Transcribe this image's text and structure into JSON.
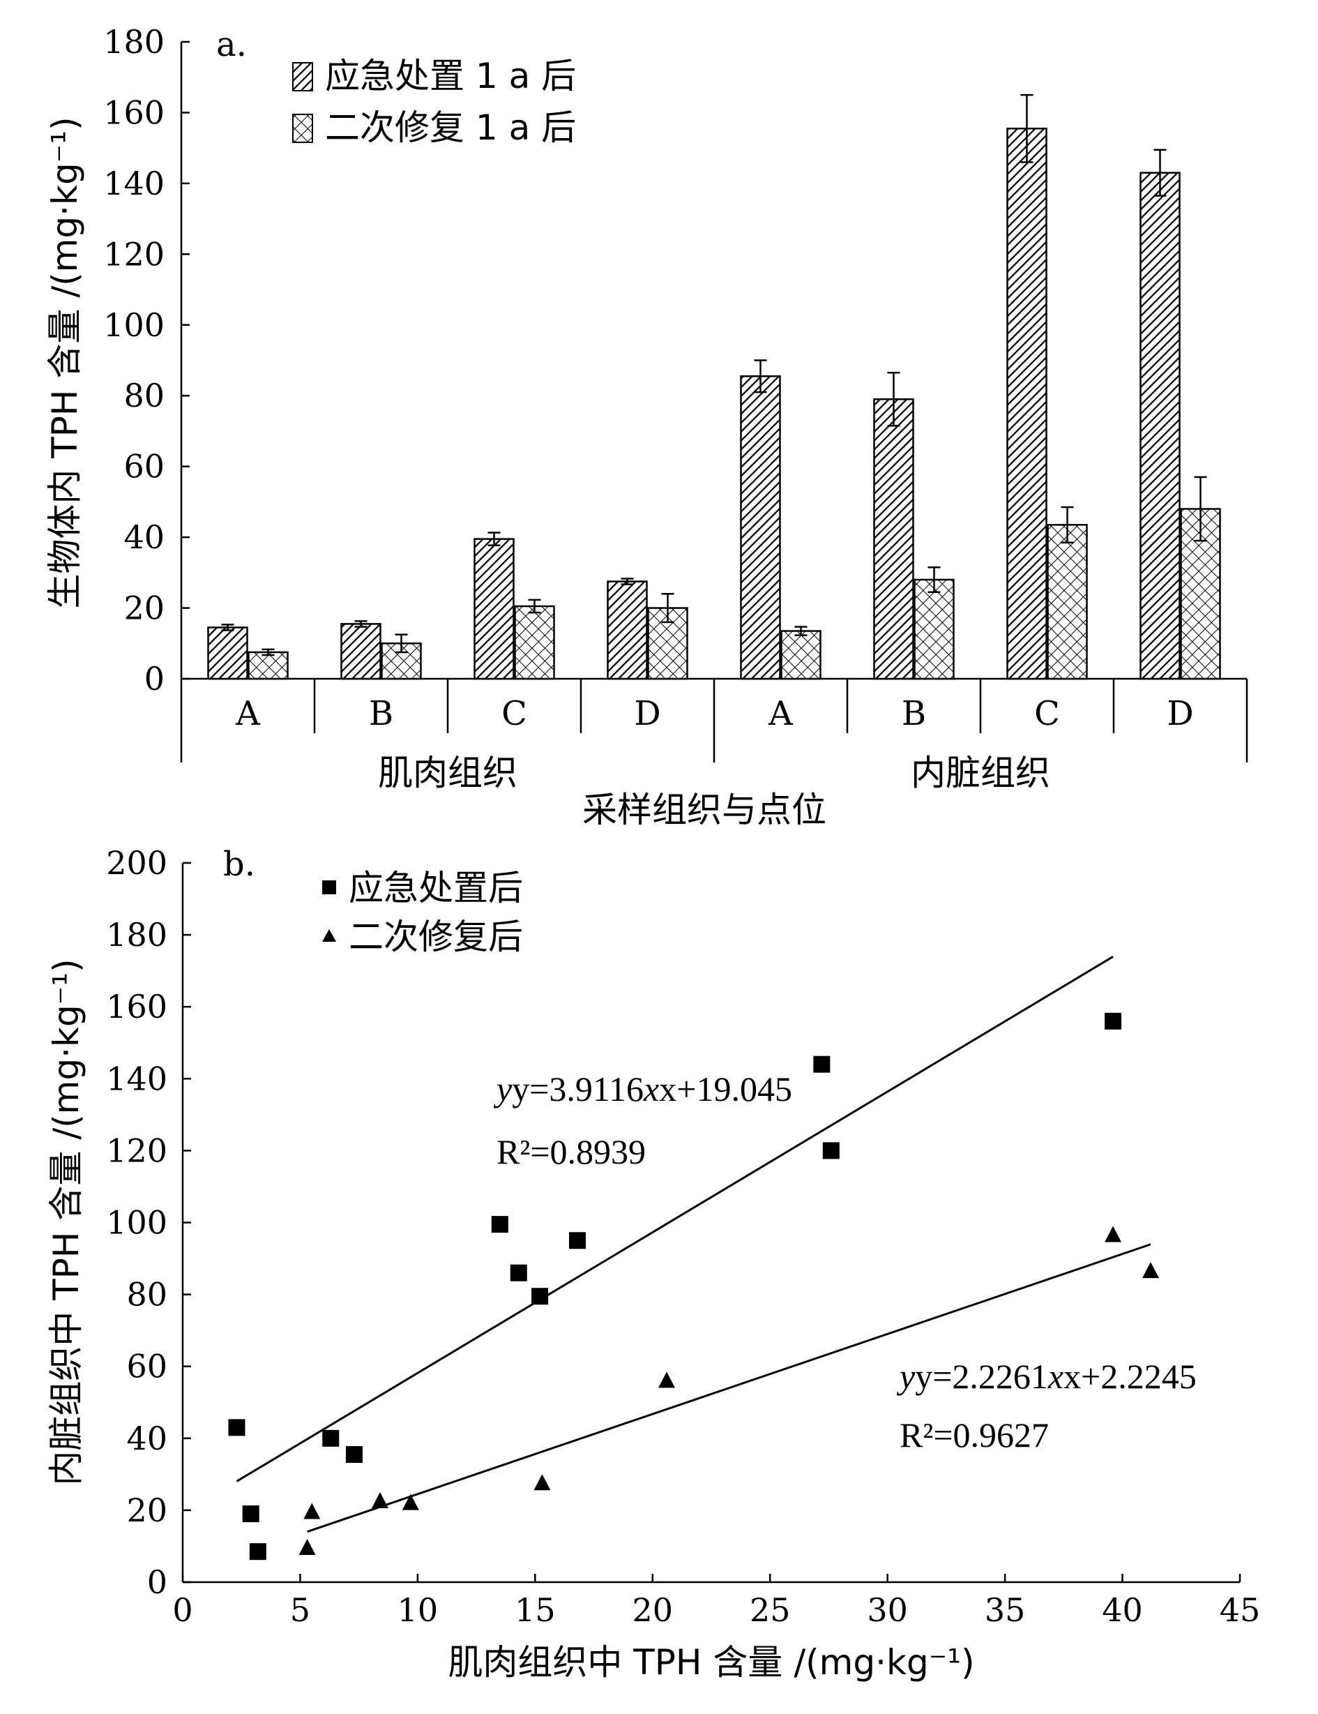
{
  "chart_data": [
    {
      "id": "a",
      "type": "bar",
      "panel_label": "a.",
      "ylabel": "生物体内 TPH 含量 /(mg·kg⁻¹)",
      "xlabel": "采样组织与点位",
      "ylim": [
        0,
        180
      ],
      "yticks": [
        "0",
        "20",
        "40",
        "60",
        "80",
        "100",
        "120",
        "140",
        "160",
        "180"
      ],
      "groups": [
        "肌肉组织",
        "内脏组织"
      ],
      "categories": [
        "A",
        "B",
        "C",
        "D",
        "A",
        "B",
        "C",
        "D"
      ],
      "series": [
        {
          "name": "应急处置 1 a 后",
          "values": [
            14.5,
            15.5,
            39.5,
            27.5,
            85.5,
            79,
            155.5,
            143
          ],
          "errors": [
            0.8,
            0.8,
            1.8,
            0.8,
            4.5,
            7.5,
            9.5,
            6.5
          ]
        },
        {
          "name": "二次修复 1 a 后",
          "values": [
            7.5,
            10,
            20.5,
            20,
            13.5,
            28,
            43.5,
            48
          ],
          "errors": [
            0.8,
            2.5,
            1.8,
            4,
            1.2,
            3.5,
            5,
            9
          ]
        }
      ]
    },
    {
      "id": "b",
      "type": "scatter",
      "panel_label": "b.",
      "xlabel": "肌肉组织中 TPH 含量 /(mg·kg⁻¹)",
      "ylabel": "内脏组织中 TPH 含量 /(mg·kg⁻¹)",
      "xlim": [
        0,
        45
      ],
      "ylim": [
        0,
        200
      ],
      "xticks": [
        "0",
        "5",
        "10",
        "15",
        "20",
        "25",
        "30",
        "35",
        "40",
        "45"
      ],
      "yticks": [
        "0",
        "20",
        "40",
        "60",
        "80",
        "100",
        "120",
        "140",
        "160",
        "180",
        "200"
      ],
      "series": [
        {
          "name": "应急处置后",
          "marker": "square",
          "points": [
            [
              2.3,
              43
            ],
            [
              2.9,
              19
            ],
            [
              3.2,
              8.5
            ],
            [
              6.3,
              40
            ],
            [
              7.3,
              35.5
            ],
            [
              13.5,
              99.5
            ],
            [
              14.3,
              86
            ],
            [
              15.2,
              79.5
            ],
            [
              16.8,
              95
            ],
            [
              27.2,
              144
            ],
            [
              27.6,
              120
            ],
            [
              39.6,
              156
            ]
          ],
          "fit": {
            "equation_prefix": "y=3.9116",
            "equation_suffix": "x+19.045",
            "r2_label": "R²=0.8939",
            "slope": 3.9116,
            "intercept": 19.045,
            "x_range": [
              2.3,
              39.6
            ]
          }
        },
        {
          "name": "二次修复后",
          "marker": "triangle",
          "points": [
            [
              5.3,
              9.5
            ],
            [
              5.5,
              19.5
            ],
            [
              8.4,
              22.5
            ],
            [
              9.7,
              22
            ],
            [
              15.3,
              27.5
            ],
            [
              20.6,
              56
            ],
            [
              39.6,
              96.5
            ],
            [
              41.2,
              86.5
            ]
          ],
          "fit": {
            "equation_prefix": "y=2.2261",
            "equation_suffix": "x+2.2245",
            "r2_label": "R²=0.9627",
            "slope": 2.2261,
            "intercept": 2.2245,
            "x_range": [
              5.3,
              41.2
            ]
          }
        }
      ]
    }
  ]
}
